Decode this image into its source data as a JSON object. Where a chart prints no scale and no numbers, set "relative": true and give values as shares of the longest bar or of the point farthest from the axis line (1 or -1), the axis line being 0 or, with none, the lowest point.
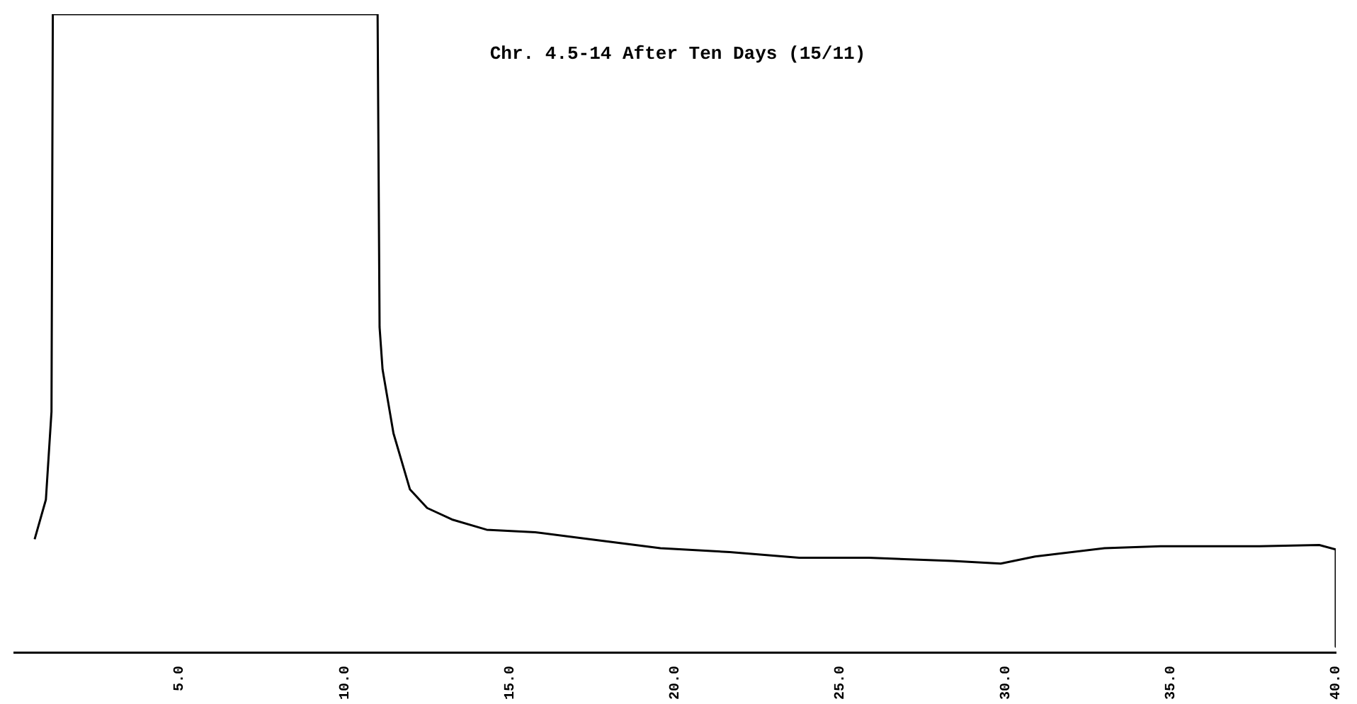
{
  "chart_data": {
    "type": "line",
    "title": "Chr. 4.5-14 After Ten Days (15/11)",
    "relative": true,
    "xlim": [
      0,
      40
    ],
    "xticks": [
      {
        "value": 5,
        "label": "5.0"
      },
      {
        "value": 10,
        "label": "10.0"
      },
      {
        "value": 15,
        "label": "15.0"
      },
      {
        "value": 20,
        "label": "20.0"
      },
      {
        "value": 25,
        "label": "25.0"
      },
      {
        "value": 30,
        "label": "30.0"
      },
      {
        "value": 35,
        "label": "35.0"
      },
      {
        "value": 40,
        "label": "40.0"
      }
    ],
    "series": [
      {
        "color": "#000000",
        "x": [
          0.62,
          0.96,
          1.13,
          1.17,
          1.26,
          11.0,
          11.06,
          11.15,
          11.48,
          11.98,
          12.5,
          13.25,
          14.3,
          15.77,
          17.45,
          19.56,
          21.66,
          23.76,
          25.87,
          28.4,
          29.86,
          30.9,
          33.0,
          34.7,
          37.6,
          39.5,
          40.0,
          40.0
        ],
        "values": [
          0.178,
          0.24,
          0.378,
          1,
          1,
          1,
          0.51,
          0.444,
          0.344,
          0.256,
          0.227,
          0.209,
          0.193,
          0.189,
          0.178,
          0.164,
          0.158,
          0.149,
          0.149,
          0.144,
          0.14,
          0.151,
          0.164,
          0.167,
          0.167,
          0.169,
          0.162,
          0.01
        ]
      }
    ],
    "grid": false,
    "legend": false,
    "marker": "none",
    "line_style": "solid"
  }
}
